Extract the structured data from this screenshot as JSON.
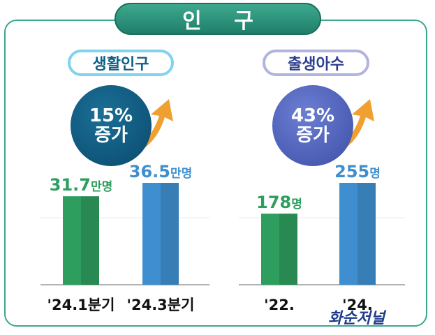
{
  "header": {
    "title": "인 구"
  },
  "left_panel": {
    "pill_label": "생활인구",
    "badge_percent": "15%",
    "badge_word": "증가"
  },
  "right_panel": {
    "pill_label": "출생아수",
    "badge_percent": "43%",
    "badge_word": "증가"
  },
  "watermark": "화순저널",
  "colors": {
    "green": "#2e9e5e",
    "blue": "#3f8fd0",
    "teal": "#3aa88e",
    "orange": "#f0a030"
  },
  "chart_data": [
    {
      "type": "bar",
      "categories": [
        "'24.1분기",
        "'24.3분기"
      ],
      "values": [
        31.7,
        36.5
      ],
      "value_labels": [
        {
          "number": "31.7",
          "unit": "만명"
        },
        {
          "number": "36.5",
          "unit": "만명"
        }
      ],
      "colors": [
        "#2e9e5e",
        "#3f8fd0"
      ],
      "ylim": [
        0,
        36.5
      ]
    },
    {
      "type": "bar",
      "categories": [
        "'22.",
        "'24."
      ],
      "values": [
        178,
        255
      ],
      "value_labels": [
        {
          "number": "178",
          "unit": "명"
        },
        {
          "number": "255",
          "unit": "명"
        }
      ],
      "colors": [
        "#2e9e5e",
        "#3f8fd0"
      ],
      "ylim": [
        0,
        255
      ]
    }
  ]
}
